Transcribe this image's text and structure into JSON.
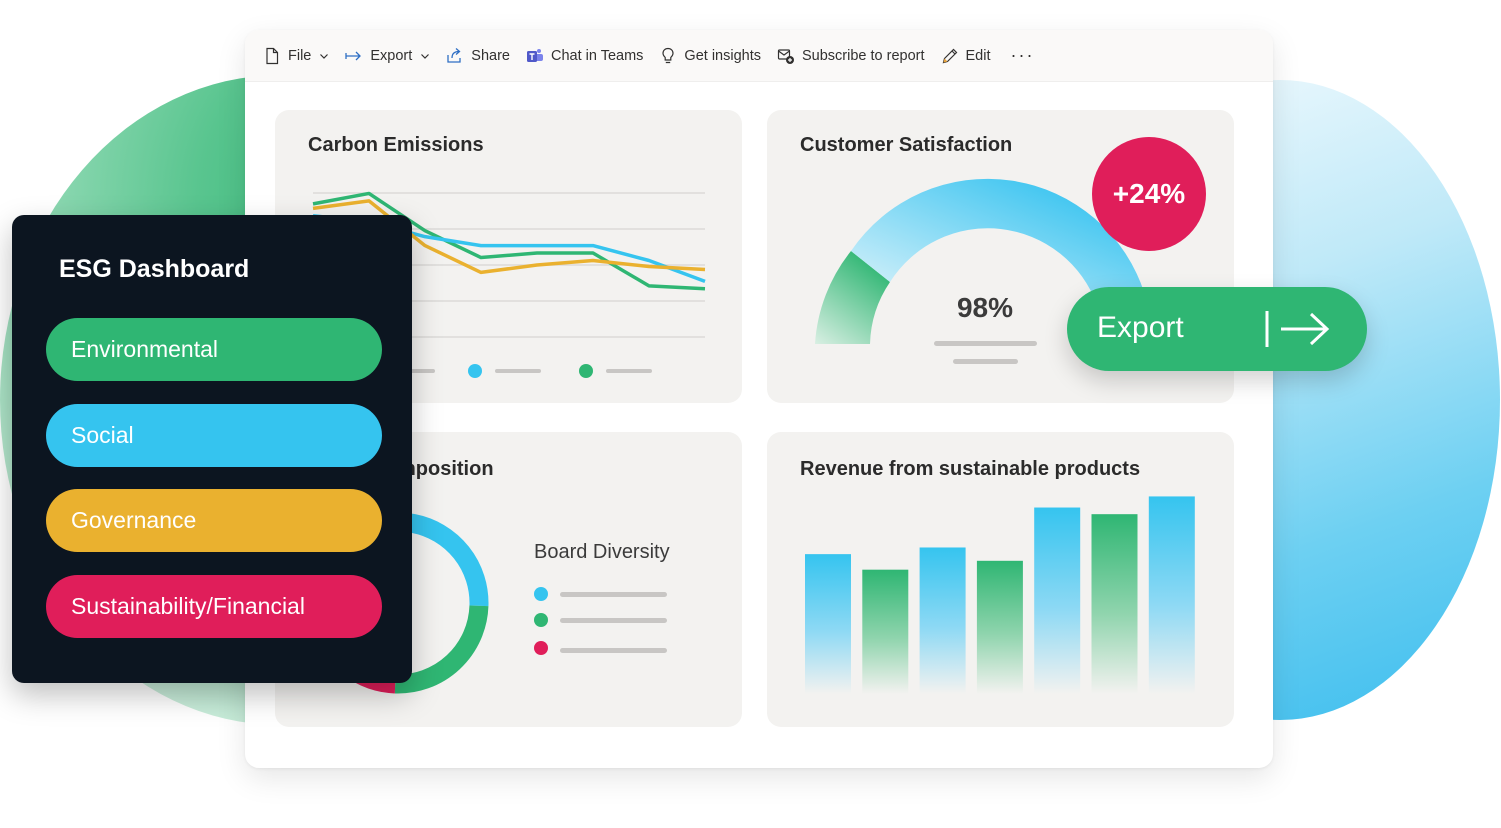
{
  "toolbar": {
    "items": [
      {
        "label": "File",
        "icon": "file-icon",
        "dropdown": true
      },
      {
        "label": "Export",
        "icon": "export-icon",
        "dropdown": true
      },
      {
        "label": "Share",
        "icon": "share-icon",
        "dropdown": false
      },
      {
        "label": "Chat in Teams",
        "icon": "teams-icon",
        "dropdown": false
      },
      {
        "label": "Get insights",
        "icon": "lightbulb-icon",
        "dropdown": false
      },
      {
        "label": "Subscribe to report",
        "icon": "subscribe-icon",
        "dropdown": false
      },
      {
        "label": "Edit",
        "icon": "pencil-icon",
        "dropdown": false
      }
    ],
    "more": "···"
  },
  "cards": {
    "carbon": {
      "title": "Carbon Emissions"
    },
    "satisfaction": {
      "title": "Customer Satisfaction",
      "badge": "+24%",
      "gauge_value": "98%"
    },
    "board": {
      "title": "Board Composition",
      "legend_title": "Board Diversity"
    },
    "revenue": {
      "title": "Revenue from sustainable products"
    }
  },
  "export_button": {
    "label": "Export"
  },
  "esg_panel": {
    "title": "ESG Dashboard",
    "buttons": [
      {
        "label": "Environmental",
        "color": "#2fb673"
      },
      {
        "label": "Social",
        "color": "#35c4ef"
      },
      {
        "label": "Governance",
        "color": "#eab12f"
      },
      {
        "label": "Sustainability/Financial",
        "color": "#e01e5a"
      }
    ]
  },
  "colors": {
    "green": "#2fb673",
    "blue": "#35c4ef",
    "yellow": "#eab12f",
    "pink": "#e01e5a",
    "panel": "#0c1520"
  },
  "chart_data": [
    {
      "type": "line",
      "title": "Carbon Emissions",
      "x": [
        1,
        2,
        3,
        4,
        5,
        6,
        7,
        8
      ],
      "series": [
        {
          "color": "#2fb673",
          "values": [
            88,
            95,
            70,
            52,
            55,
            55,
            33,
            31
          ]
        },
        {
          "color": "#35c4ef",
          "values": [
            80,
            76,
            66,
            60,
            60,
            60,
            50,
            36
          ]
        },
        {
          "color": "#eab12f",
          "values": [
            85,
            90,
            60,
            42,
            47,
            50,
            46,
            44
          ]
        }
      ],
      "ylim": [
        0,
        100
      ],
      "grid": true,
      "legend": "bottom"
    },
    {
      "type": "bar",
      "title": "Revenue from sustainable products",
      "values": [
        63,
        56,
        66,
        60,
        84,
        81,
        89
      ],
      "colors": [
        "#35c4ef",
        "#2fb673",
        "#35c4ef",
        "#2fb673",
        "#35c4ef",
        "#2fb673",
        "#35c4ef"
      ],
      "ylim": [
        0,
        100
      ]
    },
    {
      "type": "pie",
      "title": "Board Composition",
      "legend_title": "Board Diversity",
      "values": [
        45,
        25,
        15,
        15
      ],
      "colors": [
        "#35c4ef",
        "#2fb673",
        "#e01e5a",
        "#35c4ef"
      ]
    }
  ]
}
